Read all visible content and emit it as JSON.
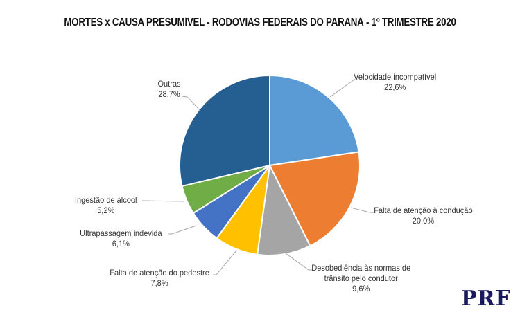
{
  "title": "MORTES x CAUSA PRESUMÍVEL - RODOVIAS FEDERAIS DO PARANÁ - 1º TRIMESTRE 2020",
  "logo": "PRF",
  "chart_data": {
    "type": "pie",
    "title": "MORTES x CAUSA PRESUMÍVEL - RODOVIAS FEDERAIS DO PARANÁ - 1º TRIMESTRE 2020",
    "start_angle": "12 o'clock, clockwise",
    "categories": [
      "Velocidade incompatível",
      "Falta de atenção à condução",
      "Desobediência às normas de trânsito pelo condutor",
      "Falta de atenção do pedestre",
      "Ultrapassagem indevida",
      "Ingestão de álcool",
      "Outras"
    ],
    "values": [
      22.6,
      20.0,
      9.6,
      7.8,
      6.1,
      5.2,
      28.7
    ],
    "value_labels": [
      "22,6%",
      "20,0%",
      "9,6%",
      "7,8%",
      "6,1%",
      "5,2%",
      "28,7%"
    ],
    "colors": [
      "#5B9BD5",
      "#ED7D31",
      "#A5A5A5",
      "#FFC000",
      "#4472C4",
      "#70AD47",
      "#255E91"
    ],
    "legend": "none (data labels with leader lines)"
  },
  "labels": [
    {
      "lines": [
        "Velocidade incompatível",
        "22,6%"
      ]
    },
    {
      "lines": [
        "Falta de atenção à condução",
        "20,0%"
      ]
    },
    {
      "lines": [
        "Desobediência às normas de",
        "trânsito pelo condutor",
        "9,6%"
      ]
    },
    {
      "lines": [
        "Falta de atenção do pedestre",
        "7,8%"
      ]
    },
    {
      "lines": [
        "Ultrapassagem indevida",
        "6,1%"
      ]
    },
    {
      "lines": [
        "Ingestão de álcool",
        "5,2%"
      ]
    },
    {
      "lines": [
        "Outras",
        "28,7%"
      ]
    }
  ]
}
